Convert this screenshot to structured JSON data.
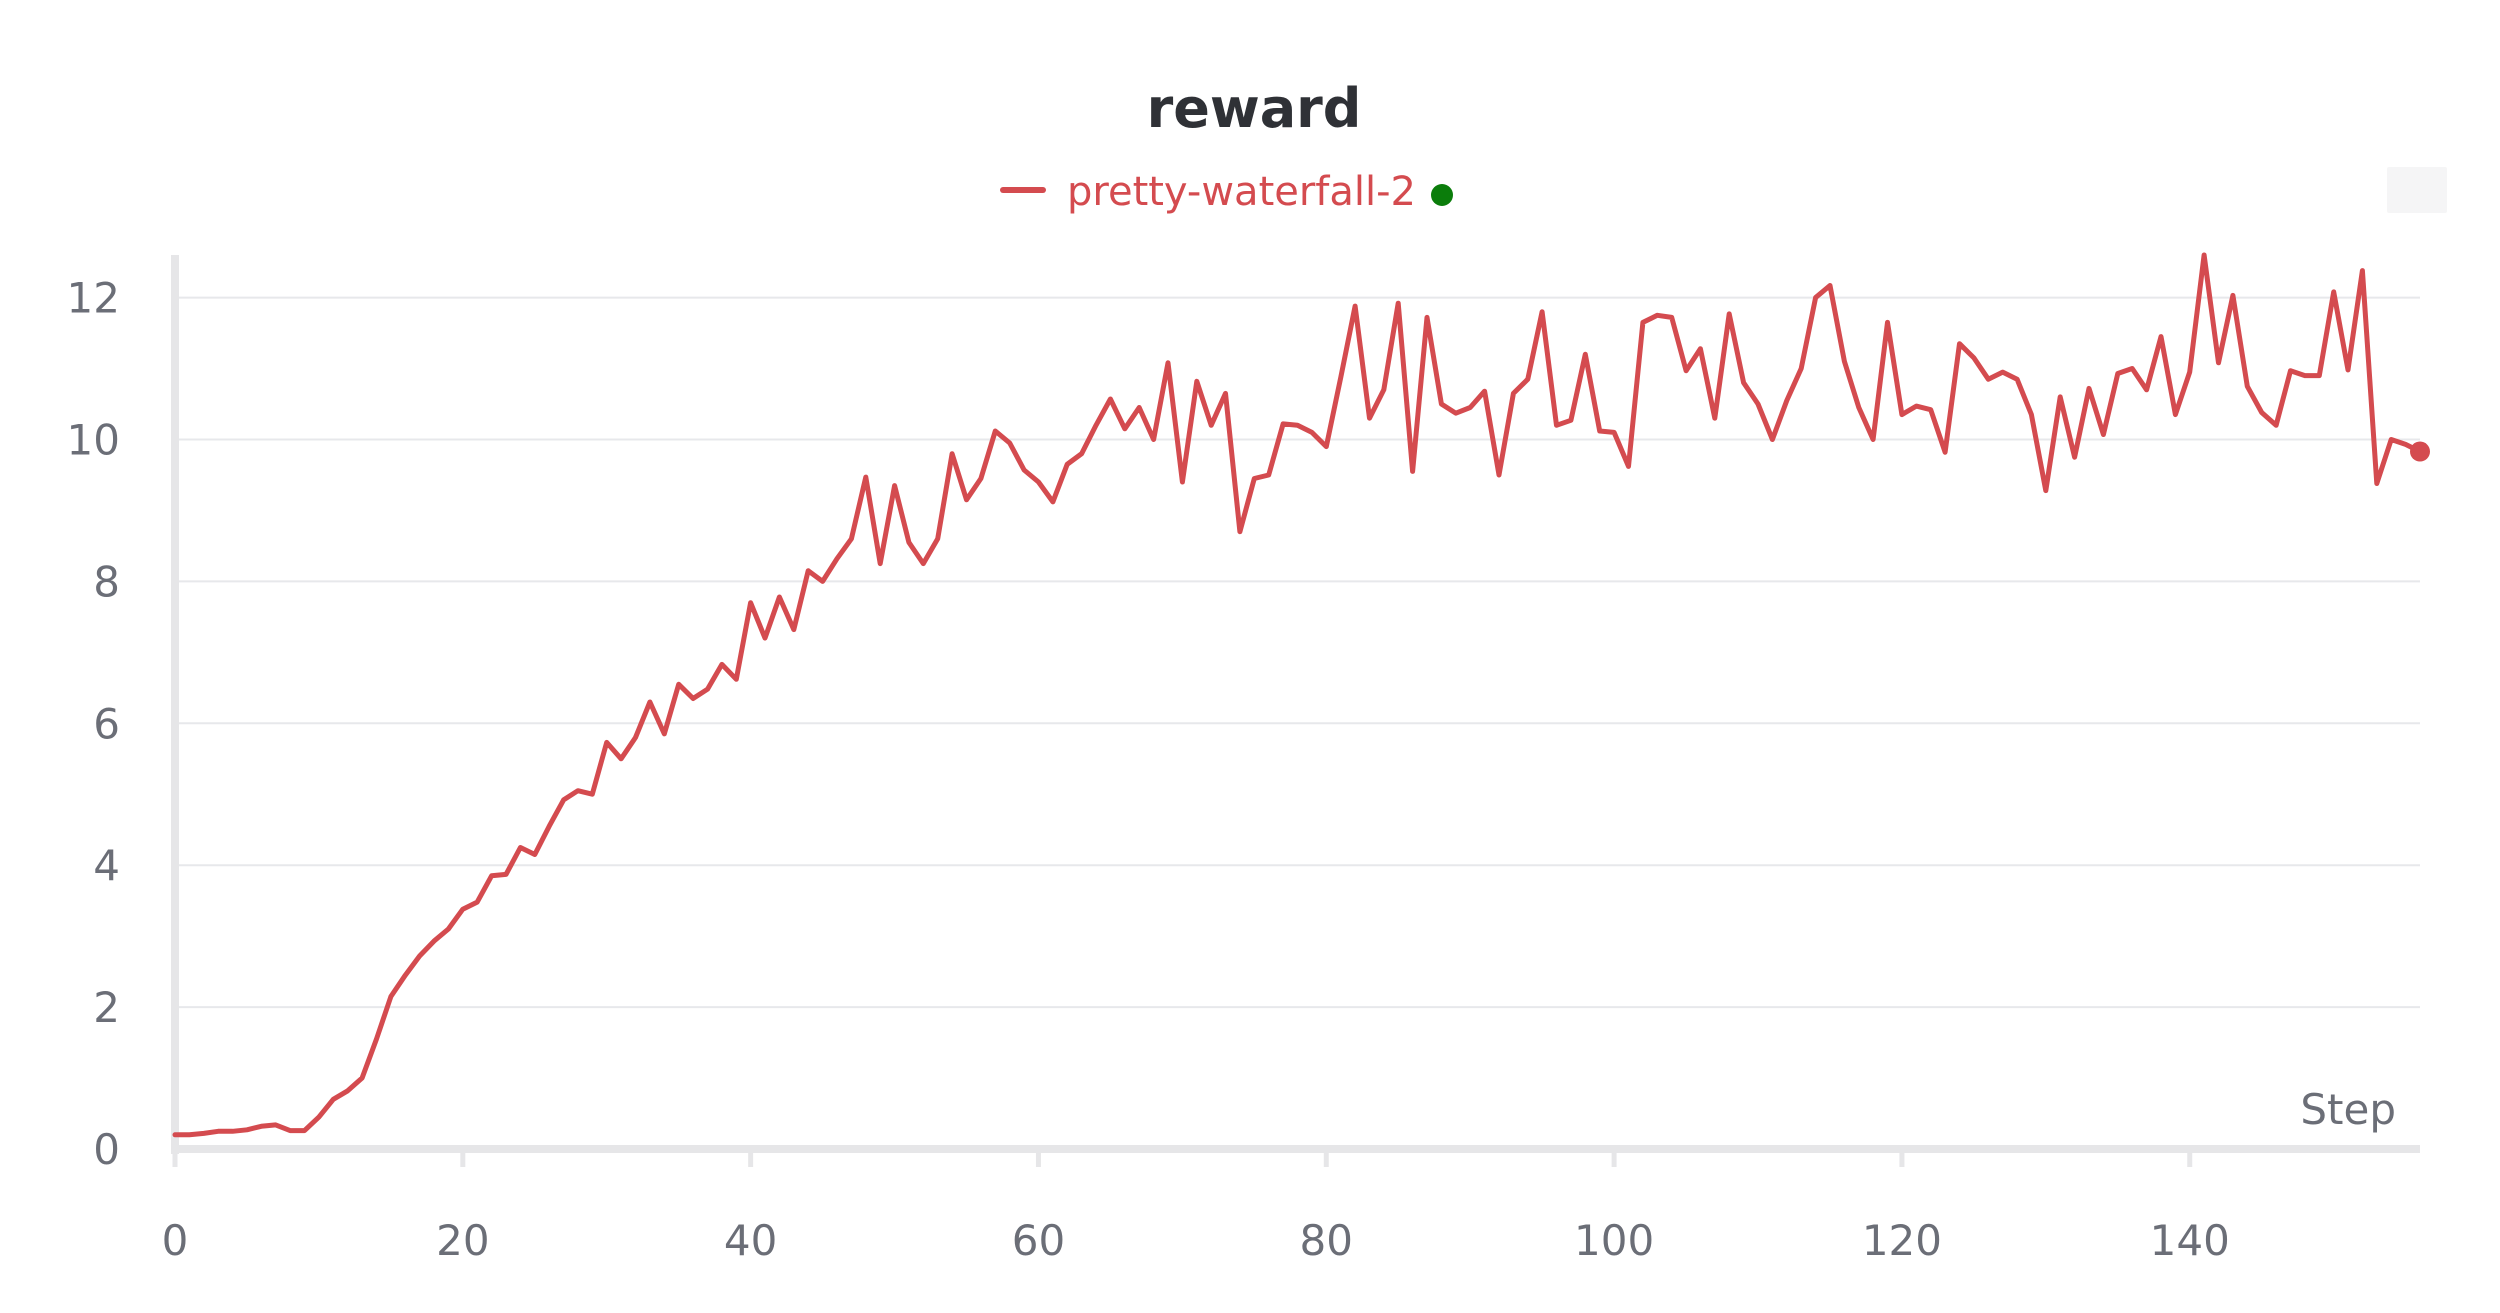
{
  "chart_data": {
    "type": "line",
    "title": "reward",
    "xlabel": "Step",
    "ylabel": "",
    "xlim": [
      0,
      156
    ],
    "ylim": [
      0,
      12.6
    ],
    "x_ticks": [
      0,
      20,
      40,
      60,
      80,
      100,
      120,
      140
    ],
    "y_ticks": [
      0,
      2,
      4,
      6,
      8,
      10,
      12
    ],
    "grid": true,
    "legend": "top-center",
    "series": [
      {
        "name": "pretty-waterfall-2",
        "color": "#d44b4f",
        "status_color": "#0b7d0b",
        "x": [
          0,
          1,
          2,
          3,
          4,
          5,
          6,
          7,
          8,
          9,
          10,
          11,
          12,
          13,
          14,
          15,
          16,
          17,
          18,
          19,
          20,
          21,
          22,
          23,
          24,
          25,
          26,
          27,
          28,
          29,
          30,
          31,
          32,
          33,
          34,
          35,
          36,
          37,
          38,
          39,
          40,
          41,
          42,
          43,
          44,
          45,
          46,
          47,
          48,
          49,
          50,
          51,
          52,
          53,
          54,
          55,
          56,
          57,
          58,
          59,
          60,
          61,
          62,
          63,
          64,
          65,
          66,
          67,
          68,
          69,
          70,
          71,
          72,
          73,
          74,
          75,
          76,
          77,
          78,
          79,
          80,
          81,
          82,
          83,
          84,
          85,
          86,
          87,
          88,
          89,
          90,
          91,
          92,
          93,
          94,
          95,
          96,
          97,
          98,
          99,
          100,
          101,
          102,
          103,
          104,
          105,
          106,
          107,
          108,
          109,
          110,
          111,
          112,
          113,
          114,
          115,
          116,
          117,
          118,
          119,
          120,
          121,
          122,
          123,
          124,
          125,
          126,
          127,
          128,
          129,
          130,
          131,
          132,
          133,
          134,
          135,
          136,
          137,
          138,
          139,
          140,
          141,
          142,
          143,
          144,
          145,
          146,
          147,
          148,
          149,
          150,
          151,
          152,
          153,
          154,
          155,
          156
        ],
        "values": [
          0.2,
          0.2,
          0.22,
          0.25,
          0.25,
          0.27,
          0.32,
          0.34,
          0.26,
          0.26,
          0.45,
          0.7,
          0.82,
          1.0,
          1.55,
          2.15,
          2.45,
          2.72,
          2.93,
          3.1,
          3.38,
          3.48,
          3.85,
          3.87,
          4.25,
          4.15,
          4.55,
          4.92,
          5.05,
          5.0,
          5.73,
          5.5,
          5.8,
          6.3,
          5.85,
          6.55,
          6.35,
          6.48,
          6.83,
          6.62,
          7.7,
          7.2,
          7.78,
          7.32,
          8.15,
          8.0,
          8.32,
          8.6,
          9.47,
          8.25,
          9.35,
          8.55,
          8.25,
          8.6,
          9.8,
          9.15,
          9.45,
          10.12,
          9.95,
          9.57,
          9.4,
          9.12,
          9.65,
          9.8,
          10.2,
          10.57,
          10.15,
          10.45,
          10.0,
          11.08,
          9.4,
          10.82,
          10.2,
          10.65,
          8.7,
          9.45,
          9.5,
          10.22,
          10.2,
          10.1,
          9.9,
          10.87,
          11.88,
          10.3,
          10.7,
          11.92,
          9.55,
          11.72,
          10.5,
          10.37,
          10.45,
          10.68,
          9.5,
          10.65,
          10.85,
          11.8,
          10.2,
          10.27,
          11.2,
          10.12,
          10.1,
          9.62,
          11.65,
          11.75,
          11.72,
          10.97,
          11.28,
          10.3,
          11.77,
          10.8,
          10.5,
          10.0,
          10.55,
          11.0,
          12.0,
          12.17,
          11.1,
          10.45,
          10.0,
          11.65,
          10.35,
          10.47,
          10.42,
          9.82,
          11.35,
          11.15,
          10.85,
          10.95,
          10.85,
          10.35,
          9.28,
          10.6,
          9.75,
          10.72,
          10.07,
          10.93,
          11.0,
          10.7,
          11.45,
          10.35,
          10.95,
          12.6,
          11.08,
          12.03,
          10.75,
          10.38,
          10.2,
          10.97,
          10.9,
          10.9,
          12.08,
          10.98,
          12.38,
          9.38,
          10.0,
          9.93,
          9.83
        ]
      }
    ]
  }
}
